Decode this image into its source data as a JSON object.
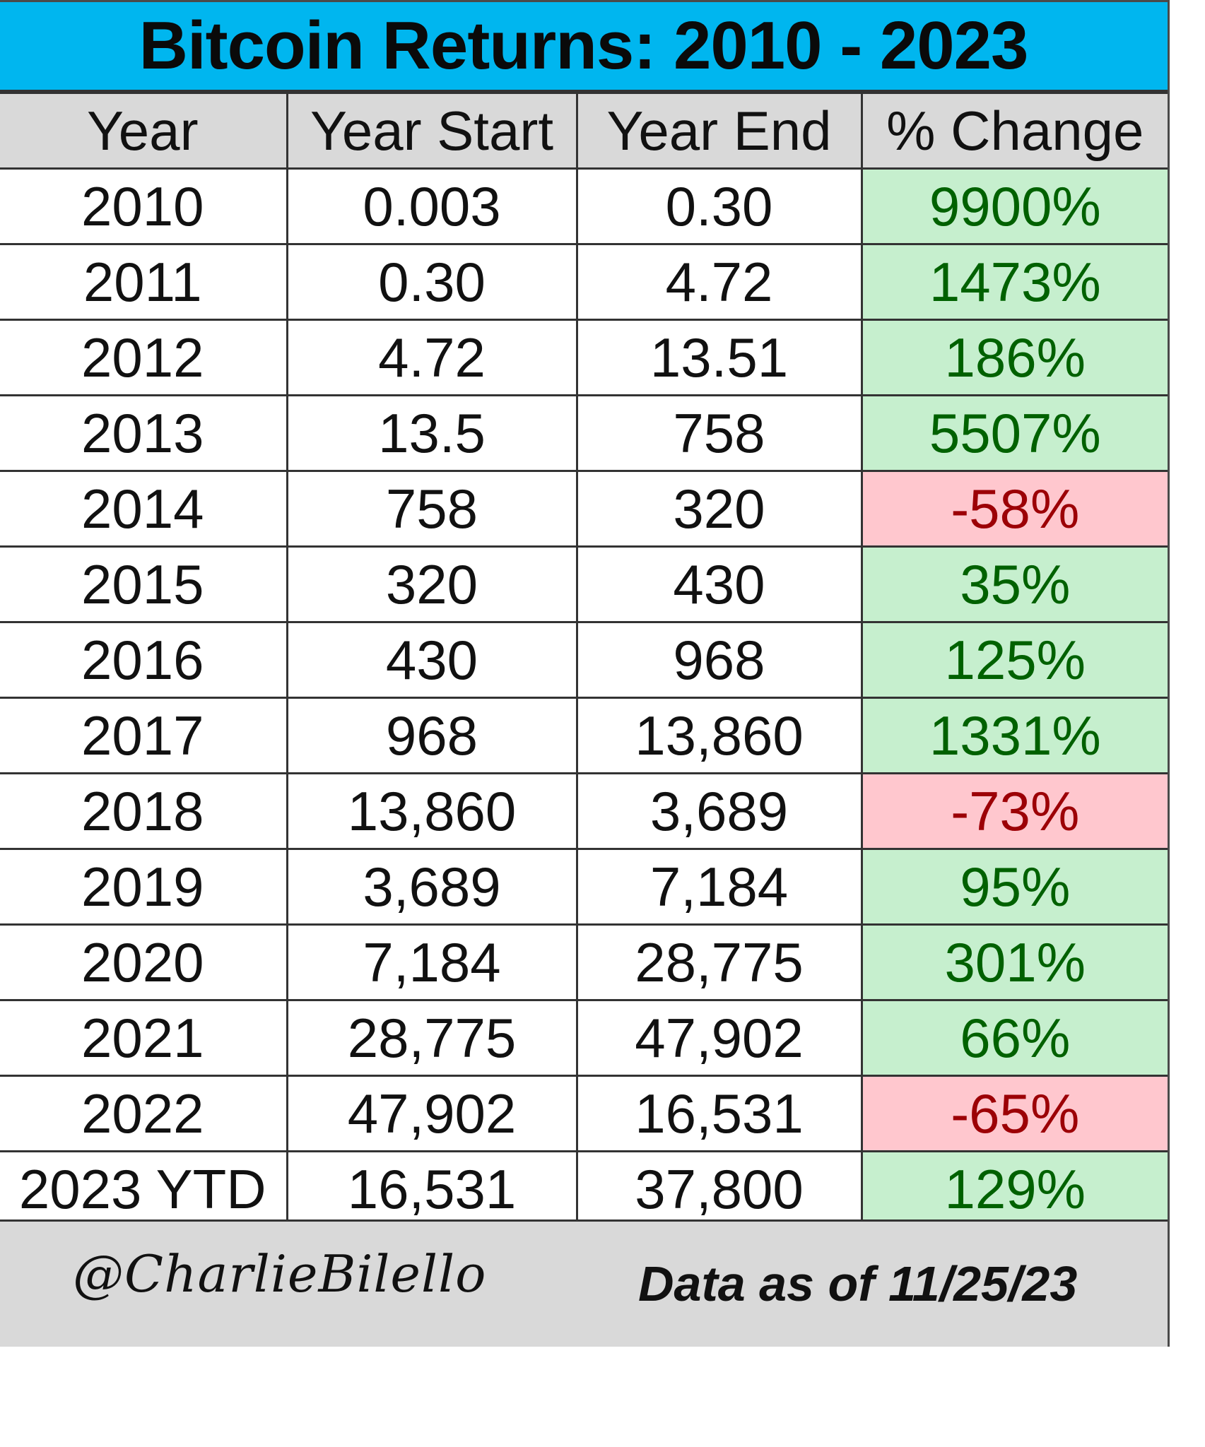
{
  "title": "Bitcoin Returns: 2010 - 2023",
  "columns": [
    "Year",
    "Year Start",
    "Year End",
    "% Change"
  ],
  "rows": [
    {
      "year": "2010",
      "start": "0.003",
      "end": "0.30",
      "change": "9900%",
      "direction": "positive"
    },
    {
      "year": "2011",
      "start": "0.30",
      "end": "4.72",
      "change": "1473%",
      "direction": "positive"
    },
    {
      "year": "2012",
      "start": "4.72",
      "end": "13.51",
      "change": "186%",
      "direction": "positive"
    },
    {
      "year": "2013",
      "start": "13.5",
      "end": "758",
      "change": "5507%",
      "direction": "positive"
    },
    {
      "year": "2014",
      "start": "758",
      "end": "320",
      "change": "-58%",
      "direction": "negative"
    },
    {
      "year": "2015",
      "start": "320",
      "end": "430",
      "change": "35%",
      "direction": "positive"
    },
    {
      "year": "2016",
      "start": "430",
      "end": "968",
      "change": "125%",
      "direction": "positive"
    },
    {
      "year": "2017",
      "start": "968",
      "end": "13,860",
      "change": "1331%",
      "direction": "positive"
    },
    {
      "year": "2018",
      "start": "13,860",
      "end": "3,689",
      "change": "-73%",
      "direction": "negative"
    },
    {
      "year": "2019",
      "start": "3,689",
      "end": "7,184",
      "change": "95%",
      "direction": "positive"
    },
    {
      "year": "2020",
      "start": "7,184",
      "end": "28,775",
      "change": "301%",
      "direction": "positive"
    },
    {
      "year": "2021",
      "start": "28,775",
      "end": "47,902",
      "change": "66%",
      "direction": "positive"
    },
    {
      "year": "2022",
      "start": "47,902",
      "end": "16,531",
      "change": "-65%",
      "direction": "negative"
    },
    {
      "year": "2023 YTD",
      "start": "16,531",
      "end": "37,800",
      "change": "129%",
      "direction": "positive"
    }
  ],
  "footer": {
    "handle": "@CharlieBilello",
    "as_of": "Data as of 11/25/23"
  },
  "colors": {
    "title_background": "#00b6ef",
    "header_background": "#d9d9d9",
    "positive_fill": "#c6efce",
    "positive_text": "#006100",
    "negative_fill": "#ffc7ce",
    "negative_text": "#9c0006"
  }
}
